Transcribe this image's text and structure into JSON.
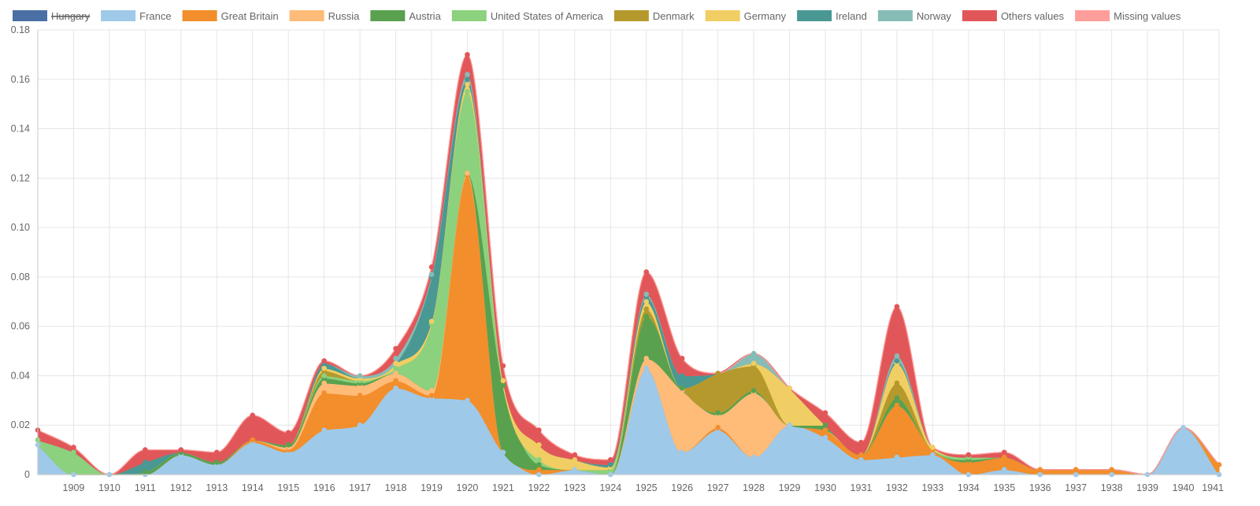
{
  "chart_data": {
    "type": "area",
    "stacked": true,
    "title": "",
    "xlabel": "",
    "ylabel": "",
    "ylim": [
      0,
      0.18
    ],
    "y_ticks": [
      "0",
      "0.02",
      "0.04",
      "0.06",
      "0.08",
      "0.10",
      "0.12",
      "0.14",
      "0.16",
      "0.18"
    ],
    "x_tick_labels": [
      "1909",
      "1910",
      "1911",
      "1912",
      "1913",
      "1914",
      "1915",
      "1916",
      "1917",
      "1918",
      "1919",
      "1920",
      "1921",
      "1922",
      "1923",
      "1924",
      "1925",
      "1926",
      "1927",
      "1928",
      "1929",
      "1930",
      "1931",
      "1932",
      "1933",
      "1934",
      "1935",
      "1936",
      "1937",
      "1938",
      "1939",
      "1940",
      "1941"
    ],
    "x": [
      1908,
      1909,
      1910,
      1911,
      1912,
      1913,
      1914,
      1915,
      1916,
      1917,
      1918,
      1919,
      1920,
      1921,
      1922,
      1923,
      1924,
      1925,
      1926,
      1927,
      1928,
      1929,
      1930,
      1931,
      1932,
      1933,
      1934,
      1935,
      1936,
      1937,
      1938,
      1939,
      1940,
      1941
    ],
    "grid": true,
    "legend_position": "top",
    "series": [
      {
        "name": "Hungary",
        "color": "#4a6fa5",
        "hidden": true,
        "values": [
          0,
          0,
          0,
          0,
          0,
          0,
          0,
          0,
          0,
          0,
          0,
          0,
          0,
          0,
          0,
          0,
          0,
          0,
          0,
          0,
          0,
          0,
          0,
          0,
          0,
          0,
          0,
          0,
          0,
          0,
          0,
          0,
          0,
          0
        ]
      },
      {
        "name": "France",
        "color": "#9fc9e8",
        "values": [
          0.012,
          0,
          0,
          0,
          0.008,
          0.004,
          0.013,
          0.009,
          0.018,
          0.02,
          0.035,
          0.031,
          0.03,
          0.009,
          0,
          0.002,
          0,
          0.043,
          0.009,
          0.018,
          0.007,
          0.02,
          0.015,
          0.006,
          0.007,
          0.008,
          0,
          0.002,
          0,
          0,
          0,
          0,
          0.019,
          0
        ]
      },
      {
        "name": "Great Britain",
        "color": "#f28e2b",
        "values": [
          0,
          0,
          0,
          0,
          0,
          0,
          0.001,
          0.001,
          0.015,
          0.012,
          0.003,
          0.001,
          0.091,
          0,
          0.002,
          0,
          0,
          0,
          0,
          0.001,
          0,
          0,
          0.003,
          0.002,
          0.021,
          0.002,
          0.005,
          0.005,
          0.002,
          0.002,
          0.002,
          0,
          0,
          0.004
        ]
      },
      {
        "name": "Russia",
        "color": "#ffbb78",
        "values": [
          0,
          0,
          0,
          0,
          0,
          0,
          0,
          0.001,
          0.004,
          0.004,
          0.003,
          0.002,
          0.001,
          0,
          0,
          0,
          0,
          0.004,
          0.025,
          0.005,
          0.026,
          0,
          0,
          0,
          0,
          0,
          0,
          0,
          0,
          0,
          0,
          0,
          0,
          0
        ]
      },
      {
        "name": "Austria",
        "color": "#59a14f",
        "values": [
          0,
          0,
          0,
          0.001,
          0.001,
          0.001,
          0,
          0.001,
          0.002,
          0.001,
          0,
          0,
          0,
          0.027,
          0.002,
          0,
          0,
          0.017,
          0.001,
          0.001,
          0.001,
          0,
          0.002,
          0,
          0.003,
          0,
          0.001,
          0,
          0,
          0,
          0,
          0,
          0,
          0
        ]
      },
      {
        "name": "United States of America",
        "color": "#8cd17d",
        "values": [
          0.002,
          0.009,
          0,
          0,
          0,
          0,
          0,
          0,
          0.001,
          0.001,
          0.002,
          0.027,
          0.033,
          0,
          0.002,
          0,
          0.002,
          0,
          0,
          0,
          0,
          0,
          0,
          0,
          0,
          0,
          0.001,
          0,
          0,
          0,
          0,
          0,
          0,
          0
        ]
      },
      {
        "name": "Denmark",
        "color": "#b6992d",
        "values": [
          0,
          0,
          0,
          0,
          0,
          0,
          0,
          0,
          0.002,
          0,
          0,
          0,
          0,
          0,
          0,
          0,
          0,
          0.003,
          0,
          0.016,
          0.01,
          0,
          0,
          0,
          0.006,
          0,
          0,
          0,
          0,
          0,
          0,
          0,
          0,
          0
        ]
      },
      {
        "name": "Germany",
        "color": "#f1ce63",
        "values": [
          0,
          0,
          0,
          0,
          0,
          0,
          0,
          0,
          0.001,
          0.001,
          0.002,
          0.001,
          0.003,
          0.002,
          0.006,
          0.004,
          0.001,
          0.003,
          0,
          0,
          0.001,
          0.015,
          0,
          0,
          0.008,
          0.001,
          0,
          0,
          0,
          0,
          0,
          0,
          0,
          0
        ]
      },
      {
        "name": "Ireland",
        "color": "#499894",
        "values": [
          0,
          0,
          0,
          0.004,
          0,
          0,
          0,
          0,
          0.002,
          0,
          0,
          0.018,
          0.002,
          0,
          0,
          0,
          0.001,
          0.002,
          0.005,
          0,
          0,
          0,
          0,
          0,
          0.001,
          0,
          0,
          0,
          0,
          0,
          0,
          0,
          0,
          0
        ]
      },
      {
        "name": "Norway",
        "color": "#86bcb6",
        "values": [
          0,
          0,
          0,
          0,
          0,
          0,
          0,
          0,
          0,
          0.001,
          0.002,
          0.001,
          0.002,
          0,
          0,
          0,
          0,
          0.001,
          0,
          0,
          0.004,
          0,
          0,
          0,
          0.002,
          0,
          0,
          0,
          0,
          0,
          0,
          0,
          0,
          0
        ]
      },
      {
        "name": "Others values",
        "color": "#e15759",
        "values": [
          0.004,
          0.002,
          0,
          0.005,
          0.001,
          0.004,
          0.01,
          0.005,
          0.001,
          0,
          0.004,
          0.003,
          0.008,
          0.006,
          0.006,
          0.002,
          0.002,
          0.009,
          0.007,
          0,
          0,
          0,
          0.005,
          0.005,
          0.02,
          0,
          0.001,
          0.002,
          0,
          0,
          0,
          0,
          0,
          0
        ]
      },
      {
        "name": "Missing values",
        "color": "#ff9d9a",
        "values": [
          0,
          0,
          0,
          0,
          0,
          0,
          0,
          0,
          0,
          0,
          0,
          0,
          0,
          0,
          0,
          0,
          0,
          0,
          0,
          0,
          0,
          0,
          0,
          0,
          0,
          0,
          0,
          0,
          0,
          0,
          0,
          0,
          0,
          0
        ]
      }
    ]
  }
}
